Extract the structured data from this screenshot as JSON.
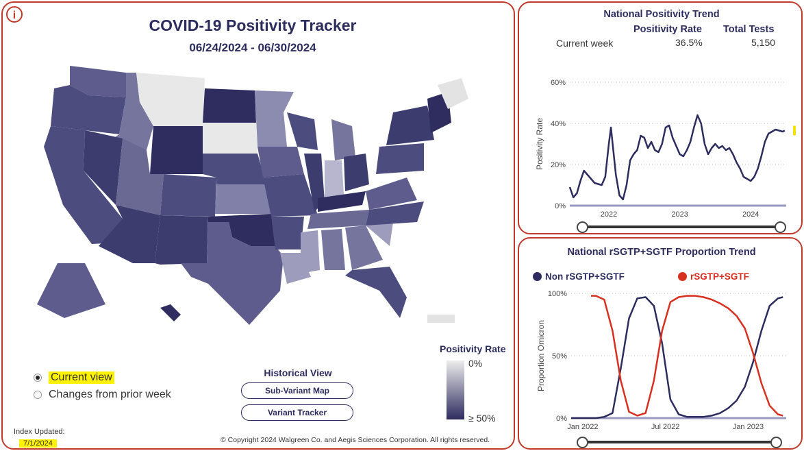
{
  "header": {
    "title": "COVID-19 Positivity Tracker",
    "date_range": "06/24/2024 - 06/30/2024",
    "info_icon": "i"
  },
  "view_options": [
    {
      "label": "Current view",
      "selected": true
    },
    {
      "label": "Changes from prior week",
      "selected": false
    }
  ],
  "historical": {
    "title": "Historical View",
    "buttons": [
      "Sub-Variant Map",
      "Variant Tracker"
    ]
  },
  "legend": {
    "title": "Positivity Rate",
    "min_label": "0%",
    "max_label": "≥ 50%",
    "low_color": "#ededed",
    "high_color": "#2d2b5e"
  },
  "index_updated": {
    "label": "Index Updated:",
    "date": "7/1/2024"
  },
  "copyright": "© Copyright 2024 Walgreen Co. and Aegis Sciences Corporation. All rights reserved.",
  "trend": {
    "title": "National Positivity Trend",
    "columns": [
      "Positivity Rate",
      "Total Tests"
    ],
    "row_label": "Current week",
    "positivity_rate": "36.5%",
    "total_tests": "5,150",
    "ylabel": "Positivity Rate",
    "yticks": [
      "0%",
      "20%",
      "40%",
      "60%"
    ],
    "xticks": [
      "2022",
      "2023",
      "2024"
    ],
    "line_color": "#2c2c5e",
    "marker_color": "#f5e400"
  },
  "sgtf": {
    "title": "National rSGTP+SGTF Proportion Trend",
    "series_names": [
      "Non rSGTP+SGTF",
      "rSGTP+SGTF"
    ],
    "series_colors": [
      "#2c2c5e",
      "#d7301f"
    ],
    "ylabel": "Proportion Omicron",
    "yticks": [
      "0%",
      "50%",
      "100%"
    ],
    "xticks": [
      "Jan 2022",
      "Jul 2022",
      "Jan 2023"
    ]
  },
  "chart_data": [
    {
      "type": "line",
      "title": "National Positivity Trend",
      "ylabel": "Positivity Rate",
      "ylim": [
        0,
        60
      ],
      "x_range": [
        2021.45,
        2024.5
      ],
      "grid": true,
      "series": [
        {
          "name": "",
          "x": [
            2021.45,
            2021.5,
            2021.55,
            2021.6,
            2021.65,
            2021.7,
            2021.8,
            2021.9,
            2021.95,
            2022.0,
            2022.03,
            2022.06,
            2022.1,
            2022.15,
            2022.2,
            2022.25,
            2022.3,
            2022.35,
            2022.4,
            2022.45,
            2022.5,
            2022.55,
            2022.6,
            2022.65,
            2022.7,
            2022.75,
            2022.8,
            2022.85,
            2022.9,
            2022.95,
            2023.0,
            2023.05,
            2023.1,
            2023.15,
            2023.2,
            2023.25,
            2023.3,
            2023.35,
            2023.4,
            2023.45,
            2023.5,
            2023.55,
            2023.6,
            2023.65,
            2023.7,
            2023.75,
            2023.8,
            2023.85,
            2023.9,
            2023.95,
            2024.0,
            2024.05,
            2024.1,
            2024.15,
            2024.2,
            2024.25,
            2024.3,
            2024.35,
            2024.4,
            2024.45,
            2024.48
          ],
          "values": [
            9,
            4,
            6,
            12,
            17,
            15,
            11,
            10,
            14,
            30,
            38,
            28,
            15,
            5,
            3,
            10,
            22,
            25,
            27,
            34,
            33,
            28,
            31,
            27,
            26,
            30,
            38,
            39,
            33,
            29,
            25,
            24,
            27,
            31,
            38,
            44,
            40,
            30,
            25,
            28,
            30,
            28,
            29,
            27,
            28,
            25,
            21,
            18,
            14,
            13,
            12,
            14,
            18,
            24,
            31,
            35,
            36,
            37,
            36.5,
            36,
            36.5
          ]
        }
      ]
    },
    {
      "type": "line",
      "title": "National rSGTP+SGTF Proportion Trend",
      "ylabel": "Proportion Omicron",
      "ylim": [
        0,
        100
      ],
      "x_range": [
        2021.95,
        2023.25
      ],
      "grid": true,
      "legend": "top",
      "series": [
        {
          "name": "Non rSGTP+SGTF",
          "x": [
            2021.95,
            2022.05,
            2022.1,
            2022.15,
            2022.2,
            2022.25,
            2022.3,
            2022.35,
            2022.4,
            2022.45,
            2022.5,
            2022.55,
            2022.6,
            2022.65,
            2022.7,
            2022.75,
            2022.8,
            2022.85,
            2022.9,
            2022.95,
            2023.0,
            2023.05,
            2023.1,
            2023.15,
            2023.2,
            2023.23
          ],
          "values": [
            0,
            0,
            0,
            1,
            4,
            40,
            80,
            96,
            97,
            90,
            60,
            15,
            3,
            1,
            1,
            1,
            2,
            4,
            8,
            14,
            25,
            45,
            70,
            90,
            96,
            97
          ]
        },
        {
          "name": "rSGTP+SGTF",
          "x": [
            2022.07,
            2022.1,
            2022.15,
            2022.2,
            2022.25,
            2022.3,
            2022.35,
            2022.4,
            2022.45,
            2022.5,
            2022.55,
            2022.6,
            2022.65,
            2022.7,
            2022.75,
            2022.8,
            2022.85,
            2022.9,
            2022.95,
            2023.0,
            2023.05,
            2023.1,
            2023.15,
            2023.2,
            2023.23
          ],
          "values": [
            98,
            98,
            95,
            70,
            30,
            5,
            2,
            4,
            30,
            70,
            93,
            97,
            98,
            98,
            97,
            95,
            92,
            88,
            82,
            72,
            52,
            28,
            10,
            3,
            2
          ]
        }
      ]
    }
  ]
}
